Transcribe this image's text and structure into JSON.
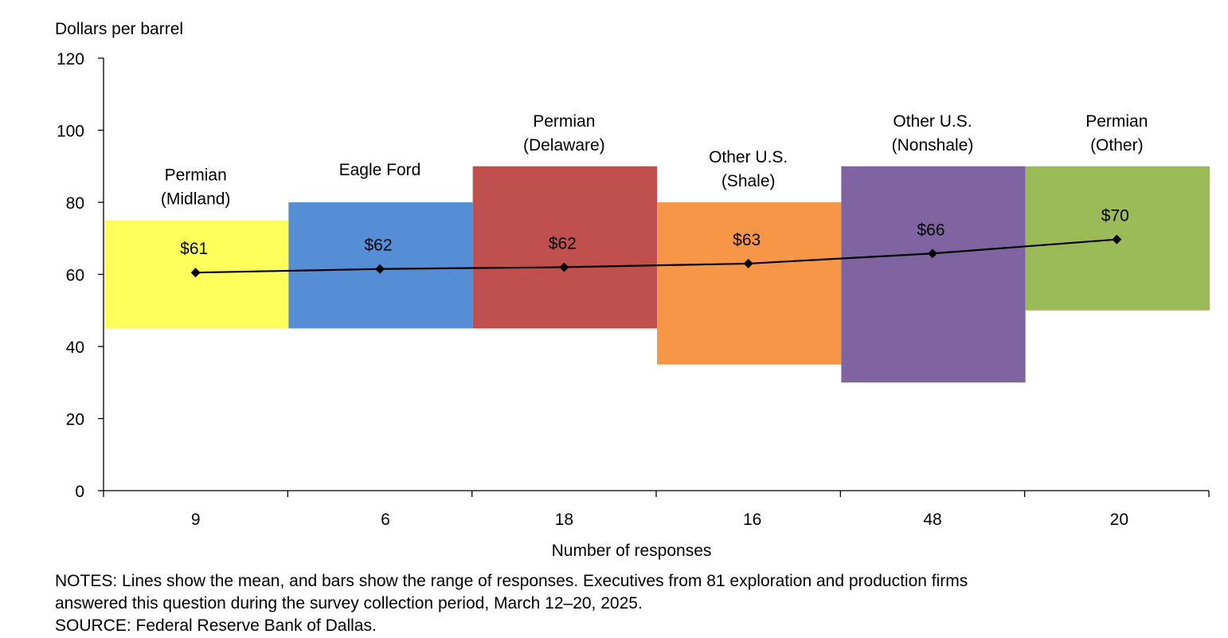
{
  "chart_data": {
    "type": "bar",
    "ylabel": "Dollars per barrel",
    "xlabel": "Number of responses",
    "ylim": [
      0,
      120
    ],
    "yticks": [
      0,
      20,
      40,
      60,
      80,
      100,
      120
    ],
    "categories": [
      {
        "region": [
          "Permian",
          "(Midland)"
        ],
        "responses": "9",
        "low": 45,
        "high": 75,
        "mean": 60.5,
        "mean_label": "$61",
        "color": "#FFFF5B"
      },
      {
        "region": [
          "Eagle Ford"
        ],
        "responses": "6",
        "low": 45,
        "high": 80,
        "mean": 61.5,
        "mean_label": "$62",
        "color": "#558ED5"
      },
      {
        "region": [
          "Permian",
          "(Delaware)"
        ],
        "responses": "18",
        "low": 45,
        "high": 90,
        "mean": 62,
        "mean_label": "$62",
        "color": "#C0504D"
      },
      {
        "region": [
          "Other U.S.",
          "(Shale)"
        ],
        "responses": "16",
        "low": 35,
        "high": 80,
        "mean": 63,
        "mean_label": "$63",
        "color": "#F79646"
      },
      {
        "region": [
          "Other U.S.",
          "(Nonshale)"
        ],
        "responses": "48",
        "low": 30,
        "high": 90,
        "mean": 65.8,
        "mean_label": "$66",
        "color": "#8064A2"
      },
      {
        "region": [
          "Permian",
          "(Other)"
        ],
        "responses": "20",
        "low": 50,
        "high": 90,
        "mean": 69.7,
        "mean_label": "$70",
        "color": "#9BBB59"
      }
    ],
    "mean_line_color": "#000000"
  },
  "notes": {
    "line1": "NOTES:  Lines show the mean, and bars show the range of responses. Executives from 81 exploration  and production firms",
    "line2": "answered  this question during the survey collection period, March 12–20, 2025.",
    "line3": "SOURCE:  Federal Reserve Bank of Dallas."
  }
}
